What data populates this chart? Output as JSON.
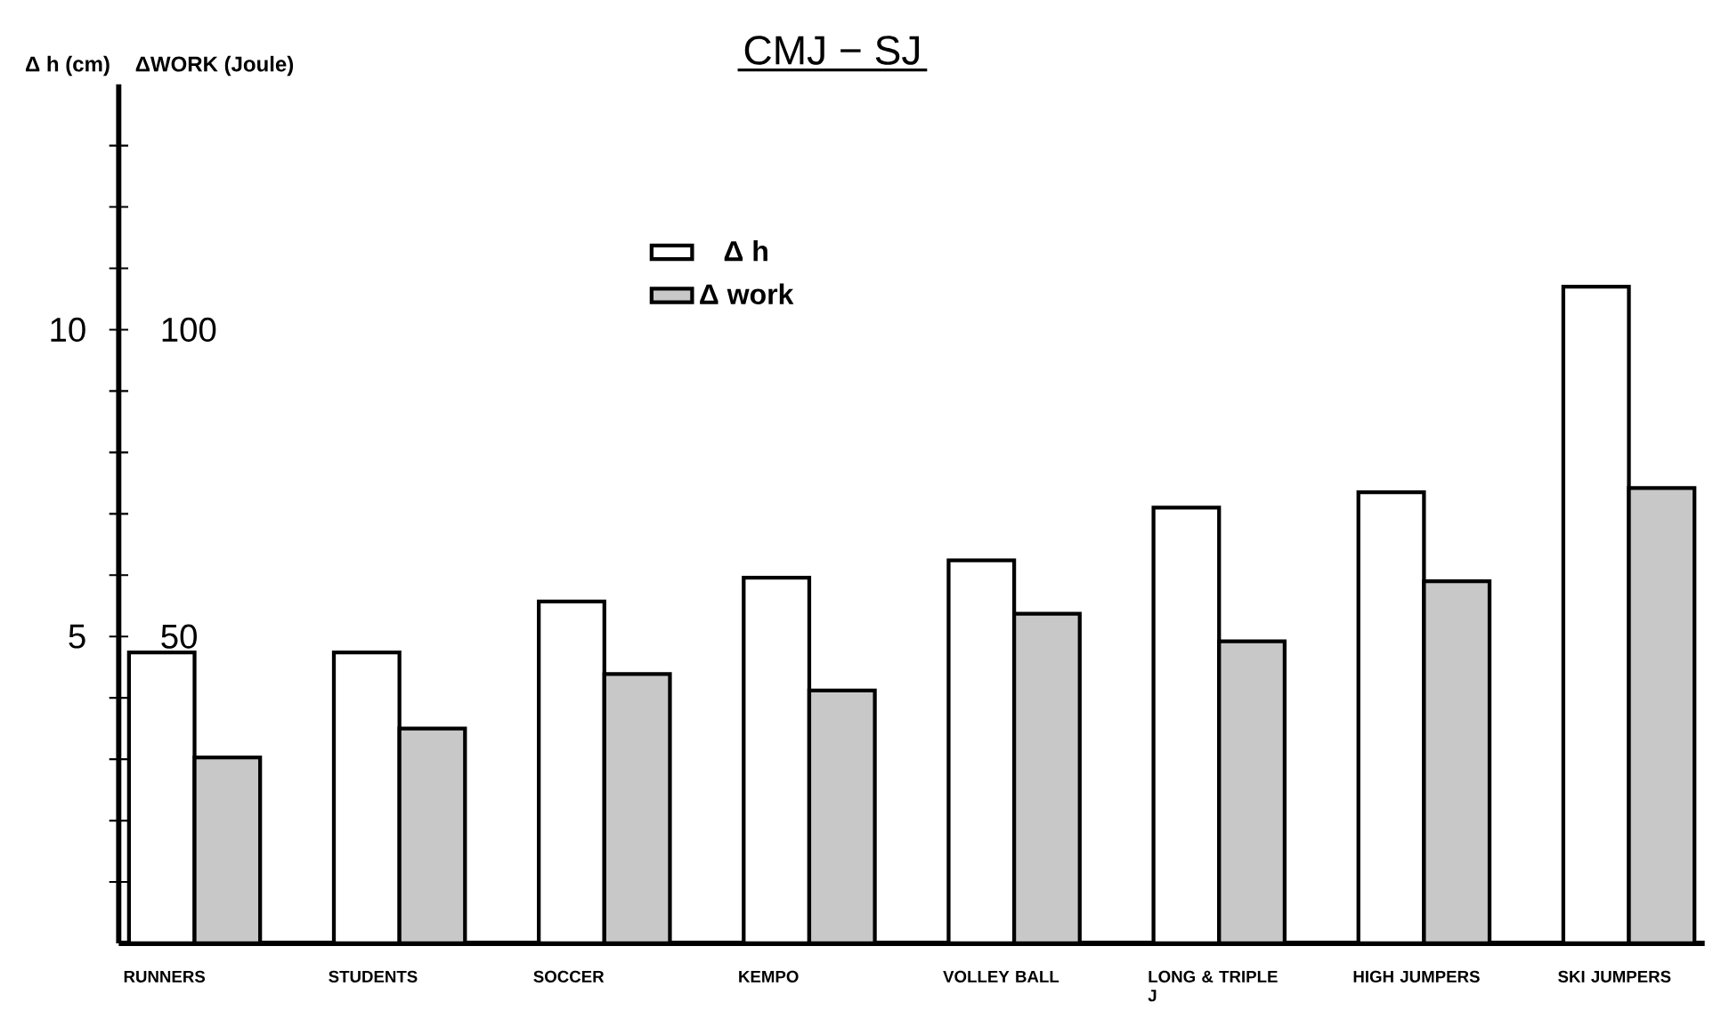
{
  "chart_data": {
    "type": "bar",
    "title": "CMJ − SJ",
    "ylabel": "Δ h (cm)",
    "y2label": "ΔWORK (Joule)",
    "categories": [
      "RUNNERS",
      "STUDENTS",
      "SOCCER",
      "KEMPO",
      "VOLLEY BALL",
      "LONG & TRIPLE J",
      "HIGH JUMPERS",
      "SKI JUMPERS"
    ],
    "series": [
      {
        "name": "Δ h",
        "color": "#ffffff",
        "values": [
          4.74,
          4.74,
          5.57,
          5.96,
          6.24,
          7.1,
          7.35,
          10.7
        ]
      },
      {
        "name": "Δ work",
        "color": "#c8c8c8",
        "axis": "y2",
        "values": [
          30.3,
          35.0,
          43.9,
          41.2,
          53.7,
          49.2,
          59.0,
          74.2
        ]
      }
    ],
    "ylim": [
      0,
      14
    ],
    "yticks": [
      {
        "value": 1,
        "label": null
      },
      {
        "value": 2,
        "label": null
      },
      {
        "value": 3,
        "label": null
      },
      {
        "value": 4,
        "label": null
      },
      5,
      {
        "value": 6,
        "label": null
      },
      {
        "value": 7,
        "label": null
      },
      {
        "value": 8,
        "label": null
      },
      {
        "value": 9,
        "label": null
      },
      10,
      {
        "value": 11,
        "label": null
      },
      {
        "value": 12,
        "label": null
      },
      {
        "value": 13,
        "label": null
      }
    ],
    "y2lim": [
      0,
      140
    ],
    "y2ticks": [
      50,
      100
    ],
    "legend": "top",
    "grid": false
  }
}
